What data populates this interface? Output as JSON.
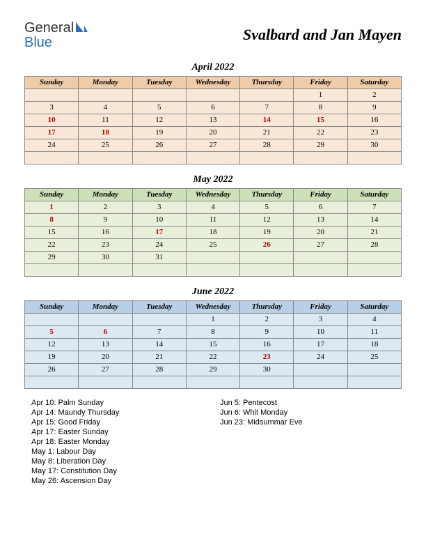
{
  "logo": {
    "line1": "General",
    "line2": "Blue"
  },
  "title": "Svalbard and Jan Mayen",
  "weekdays": [
    "Sunday",
    "Monday",
    "Tuesday",
    "Wednesday",
    "Thursday",
    "Friday",
    "Saturday"
  ],
  "months": [
    {
      "title": "April 2022",
      "colors": {
        "header_bg": "#f0cba8",
        "cell_bg": "#f9e8d7",
        "border": "#888"
      },
      "weeks": [
        [
          {
            "d": ""
          },
          {
            "d": ""
          },
          {
            "d": ""
          },
          {
            "d": ""
          },
          {
            "d": ""
          },
          {
            "d": "1"
          },
          {
            "d": "2"
          }
        ],
        [
          {
            "d": "3"
          },
          {
            "d": "4"
          },
          {
            "d": "5"
          },
          {
            "d": "6"
          },
          {
            "d": "7"
          },
          {
            "d": "8"
          },
          {
            "d": "9"
          }
        ],
        [
          {
            "d": "10",
            "h": true
          },
          {
            "d": "11"
          },
          {
            "d": "12"
          },
          {
            "d": "13"
          },
          {
            "d": "14",
            "h": true
          },
          {
            "d": "15",
            "h": true
          },
          {
            "d": "16"
          }
        ],
        [
          {
            "d": "17",
            "h": true
          },
          {
            "d": "18",
            "h": true
          },
          {
            "d": "19"
          },
          {
            "d": "20"
          },
          {
            "d": "21"
          },
          {
            "d": "22"
          },
          {
            "d": "23"
          }
        ],
        [
          {
            "d": "24"
          },
          {
            "d": "25"
          },
          {
            "d": "26"
          },
          {
            "d": "27"
          },
          {
            "d": "28"
          },
          {
            "d": "29"
          },
          {
            "d": "30"
          }
        ],
        [
          {
            "d": ""
          },
          {
            "d": ""
          },
          {
            "d": ""
          },
          {
            "d": ""
          },
          {
            "d": ""
          },
          {
            "d": ""
          },
          {
            "d": ""
          }
        ]
      ]
    },
    {
      "title": "May 2022",
      "colors": {
        "header_bg": "#cde0b8",
        "cell_bg": "#e8f0db",
        "border": "#888"
      },
      "weeks": [
        [
          {
            "d": "1",
            "h": true
          },
          {
            "d": "2"
          },
          {
            "d": "3"
          },
          {
            "d": "4"
          },
          {
            "d": "5"
          },
          {
            "d": "6"
          },
          {
            "d": "7"
          }
        ],
        [
          {
            "d": "8",
            "h": true
          },
          {
            "d": "9"
          },
          {
            "d": "10"
          },
          {
            "d": "11"
          },
          {
            "d": "12"
          },
          {
            "d": "13"
          },
          {
            "d": "14"
          }
        ],
        [
          {
            "d": "15"
          },
          {
            "d": "16"
          },
          {
            "d": "17",
            "h": true
          },
          {
            "d": "18"
          },
          {
            "d": "19"
          },
          {
            "d": "20"
          },
          {
            "d": "21"
          }
        ],
        [
          {
            "d": "22"
          },
          {
            "d": "23"
          },
          {
            "d": "24"
          },
          {
            "d": "25"
          },
          {
            "d": "26",
            "h": true
          },
          {
            "d": "27"
          },
          {
            "d": "28"
          }
        ],
        [
          {
            "d": "29"
          },
          {
            "d": "30"
          },
          {
            "d": "31"
          },
          {
            "d": ""
          },
          {
            "d": ""
          },
          {
            "d": ""
          },
          {
            "d": ""
          }
        ],
        [
          {
            "d": ""
          },
          {
            "d": ""
          },
          {
            "d": ""
          },
          {
            "d": ""
          },
          {
            "d": ""
          },
          {
            "d": ""
          },
          {
            "d": ""
          }
        ]
      ]
    },
    {
      "title": "June 2022",
      "colors": {
        "header_bg": "#b8cfe8",
        "cell_bg": "#dce8f2",
        "border": "#888"
      },
      "weeks": [
        [
          {
            "d": ""
          },
          {
            "d": ""
          },
          {
            "d": ""
          },
          {
            "d": "1"
          },
          {
            "d": "2"
          },
          {
            "d": "3"
          },
          {
            "d": "4"
          }
        ],
        [
          {
            "d": "5",
            "h": true
          },
          {
            "d": "6",
            "h": true
          },
          {
            "d": "7"
          },
          {
            "d": "8"
          },
          {
            "d": "9"
          },
          {
            "d": "10"
          },
          {
            "d": "11"
          }
        ],
        [
          {
            "d": "12"
          },
          {
            "d": "13"
          },
          {
            "d": "14"
          },
          {
            "d": "15"
          },
          {
            "d": "16"
          },
          {
            "d": "17"
          },
          {
            "d": "18"
          }
        ],
        [
          {
            "d": "19"
          },
          {
            "d": "20"
          },
          {
            "d": "21"
          },
          {
            "d": "22"
          },
          {
            "d": "23",
            "h": true
          },
          {
            "d": "24"
          },
          {
            "d": "25"
          }
        ],
        [
          {
            "d": "26"
          },
          {
            "d": "27"
          },
          {
            "d": "28"
          },
          {
            "d": "29"
          },
          {
            "d": "30"
          },
          {
            "d": ""
          },
          {
            "d": ""
          }
        ],
        [
          {
            "d": ""
          },
          {
            "d": ""
          },
          {
            "d": ""
          },
          {
            "d": ""
          },
          {
            "d": ""
          },
          {
            "d": ""
          },
          {
            "d": ""
          }
        ]
      ]
    }
  ],
  "holidays_left": [
    "Apr 10: Palm Sunday",
    "Apr 14: Maundy Thursday",
    "Apr 15: Good Friday",
    "Apr 17: Easter Sunday",
    "Apr 18: Easter Monday",
    "May 1: Labour Day",
    "May 8: Liberation Day",
    "May 17: Constitution Day",
    "May 26: Ascension Day"
  ],
  "holidays_right": [
    "Jun 5: Pentecost",
    "Jun 6: Whit Monday",
    "Jun 23: Midsummar Eve"
  ]
}
